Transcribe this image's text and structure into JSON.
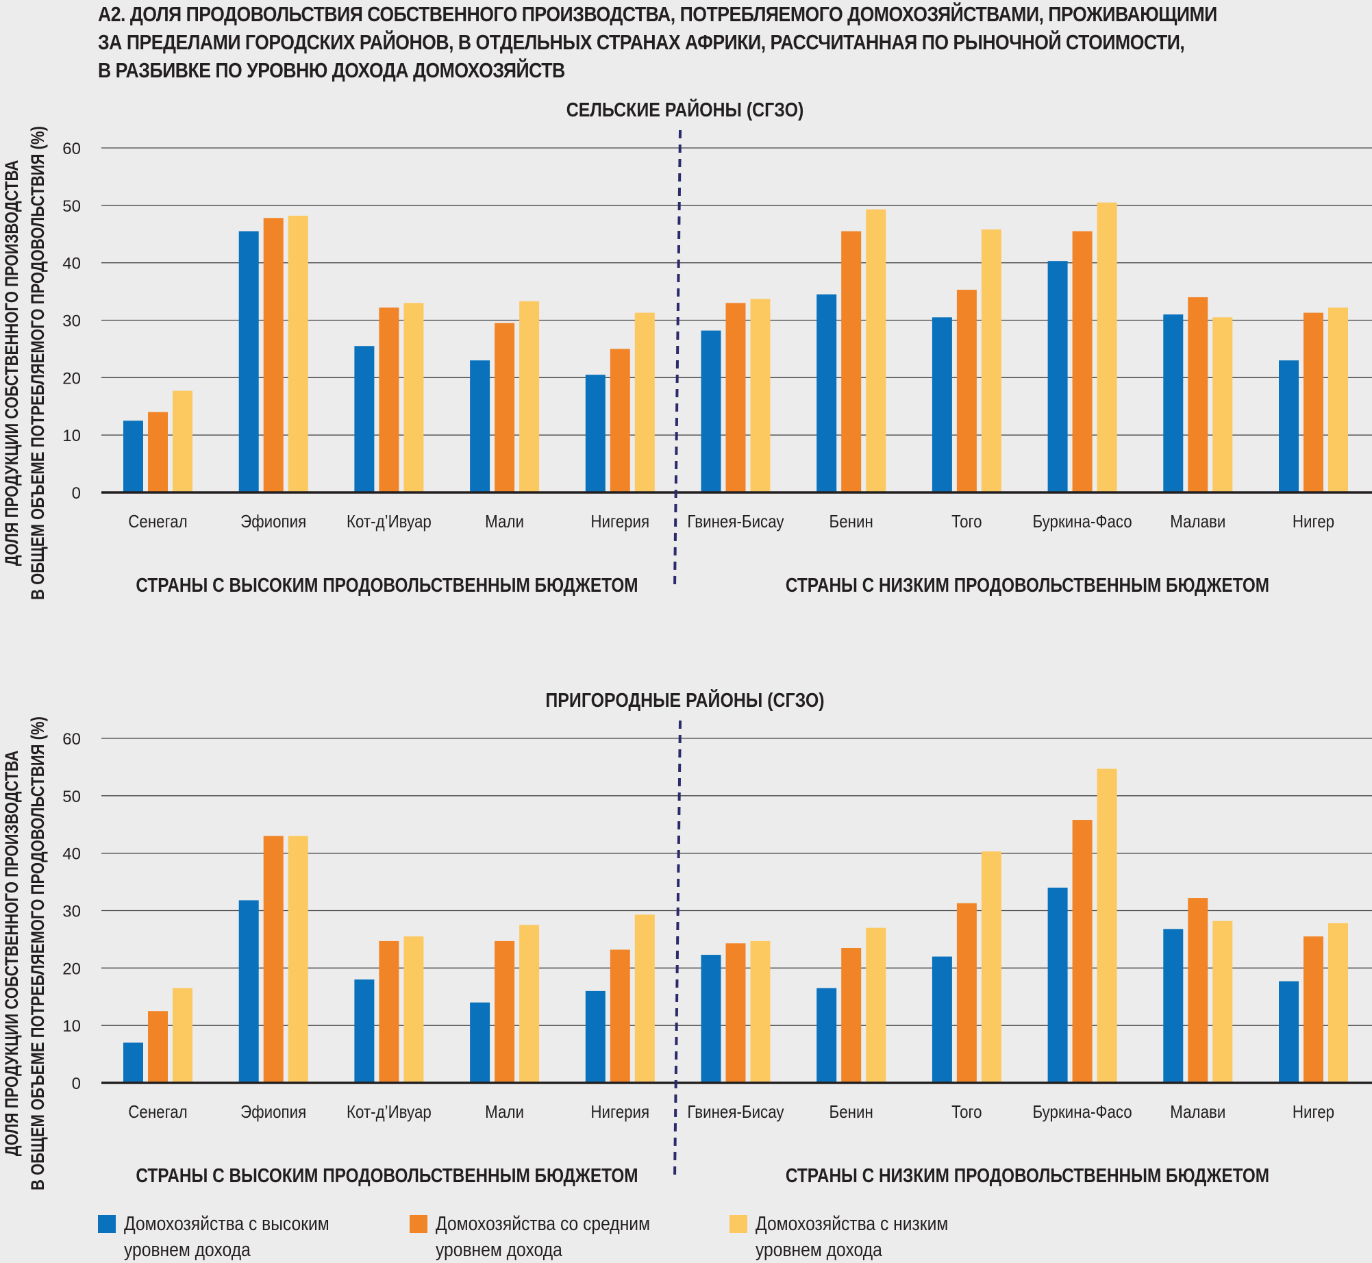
{
  "figure": {
    "title_lines": [
      "А2. ДОЛЯ ПРОДОВОЛЬСТВИЯ СОБСТВЕННОГО ПРОИЗВОДСТВА, ПОТРЕБЛЯЕМОГО ДОМОХОЗЯЙСТВАМИ, ПРОЖИВАЮЩИМИ",
      "ЗА ПРЕДЕЛАМИ ГОРОДСКИХ РАЙОНОВ, В ОТДЕЛЬНЫХ СТРАНАХ АФРИКИ, РАССЧИТАННАЯ ПО РЫНОЧНОЙ СТОИМОСТИ,",
      "В РАЗБИВКЕ ПО УРОВНЮ ДОХОДА ДОМОХОЗЯЙСТВ"
    ]
  },
  "colors": {
    "high_income": "#0a72bc",
    "middle_income": "#f18426",
    "low_income": "#fcc860",
    "divider": "#2b2a6b",
    "grid": "#444444",
    "axis": "#231f20"
  },
  "legend": [
    {
      "key": "high_income",
      "line1": "Домохозяйства с высоким",
      "line2": "уровнем дохода"
    },
    {
      "key": "middle_income",
      "line1": "Домохозяйства со средним",
      "line2": "уровнем дохода"
    },
    {
      "key": "low_income",
      "line1": "Домохозяйства с низким",
      "line2": "уровнем дохода"
    }
  ],
  "chart_data": [
    {
      "type": "bar",
      "title": "СЕЛЬСКИЕ РАЙОНЫ (СГЗО)",
      "ylabel_lines": [
        "ДОЛЯ ПРОДУКЦИИ СОБСТВЕННОГО ПРОИЗВОДСТВА",
        "В ОБЩЕМ ОБЪЕМЕ ПОТРЕБЛЯЕМОГО ПРОДОВОЛЬСТВИЯ (%)"
      ],
      "ylim": [
        0,
        60
      ],
      "yticks": [
        0,
        10,
        20,
        30,
        40,
        50,
        60
      ],
      "grid": true,
      "categories": [
        "Сенегал",
        "Эфиопия",
        "Кот-д’Ивуар",
        "Мали",
        "Нигерия",
        "Гвинея-Бисау",
        "Бенин",
        "Того",
        "Буркина-Фасо",
        "Малави",
        "Нигер"
      ],
      "group_labels": [
        "СТРАНЫ С ВЫСОКИМ ПРОДОВОЛЬСТВЕННЫМ БЮДЖЕТОМ",
        "СТРАНЫ С НИЗКИМ ПРОДОВОЛЬСТВЕННЫМ БЮДЖЕТОМ"
      ],
      "group_sizes": [
        5,
        6
      ],
      "series": [
        {
          "key": "high_income",
          "values": [
            12.5,
            45.5,
            25.5,
            23,
            20.5,
            28.2,
            34.5,
            30.5,
            40.3,
            31,
            23
          ]
        },
        {
          "key": "middle_income",
          "values": [
            14,
            47.8,
            32.2,
            29.5,
            25,
            33,
            45.5,
            35.3,
            45.5,
            34,
            31.3
          ]
        },
        {
          "key": "low_income",
          "values": [
            17.7,
            48.2,
            33,
            33.3,
            31.3,
            33.7,
            49.3,
            45.8,
            50.5,
            30.5,
            32.2
          ]
        }
      ]
    },
    {
      "type": "bar",
      "title": "ПРИГОРОДНЫЕ РАЙОНЫ (СГЗО)",
      "ylabel_lines": [
        "ДОЛЯ ПРОДУКЦИИ СОБСТВЕННОГО ПРОИЗВОДСТВА",
        "В ОБЩЕМ ОБЪЕМЕ ПОТРЕБЛЯЕМОГО ПРОДОВОЛЬСТВИЯ (%)"
      ],
      "ylim": [
        0,
        60
      ],
      "yticks": [
        0,
        10,
        20,
        30,
        40,
        50,
        60
      ],
      "grid": true,
      "categories": [
        "Сенегал",
        "Эфиопия",
        "Кот-д’Ивуар",
        "Мали",
        "Нигерия",
        "Гвинея-Бисау",
        "Бенин",
        "Того",
        "Буркина-Фасо",
        "Малави",
        "Нигер"
      ],
      "group_labels": [
        "СТРАНЫ С ВЫСОКИМ ПРОДОВОЛЬСТВЕННЫМ БЮДЖЕТОМ",
        "СТРАНЫ С НИЗКИМ ПРОДОВОЛЬСТВЕННЫМ БЮДЖЕТОМ"
      ],
      "group_sizes": [
        5,
        6
      ],
      "series": [
        {
          "key": "high_income",
          "values": [
            7,
            31.8,
            18,
            14,
            16,
            22.3,
            16.5,
            22,
            34,
            26.8,
            17.7
          ]
        },
        {
          "key": "middle_income",
          "values": [
            12.5,
            43,
            24.7,
            24.7,
            23.2,
            24.3,
            23.5,
            31.3,
            45.8,
            32.2,
            25.5
          ]
        },
        {
          "key": "low_income",
          "values": [
            16.5,
            43,
            25.5,
            27.5,
            29.3,
            24.7,
            27,
            40.3,
            54.7,
            28.2,
            27.8
          ]
        }
      ]
    }
  ]
}
